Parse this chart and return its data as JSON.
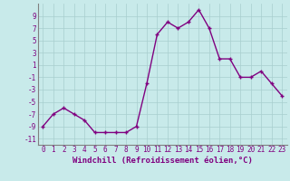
{
  "x": [
    0,
    1,
    2,
    3,
    4,
    5,
    6,
    7,
    8,
    9,
    10,
    11,
    12,
    13,
    14,
    15,
    16,
    17,
    18,
    19,
    20,
    21,
    22,
    23
  ],
  "y": [
    -9,
    -7,
    -6,
    -7,
    -8,
    -10,
    -10,
    -10,
    -10,
    -9,
    -2,
    6,
    8,
    7,
    8,
    10,
    7,
    2,
    2,
    -1,
    -1,
    0,
    -2,
    -4
  ],
  "line_color": "#800080",
  "marker": "+",
  "marker_size": 3,
  "marker_linewidth": 1.0,
  "background_color": "#c8eaea",
  "grid_color": "#a8cece",
  "xlabel": "Windchill (Refroidissement éolien,°C)",
  "ylim": [
    -12,
    11
  ],
  "xlim": [
    -0.5,
    23.5
  ],
  "yticks": [
    -11,
    -9,
    -7,
    -5,
    -3,
    -1,
    1,
    3,
    5,
    7,
    9
  ],
  "xticks": [
    0,
    1,
    2,
    3,
    4,
    5,
    6,
    7,
    8,
    9,
    10,
    11,
    12,
    13,
    14,
    15,
    16,
    17,
    18,
    19,
    20,
    21,
    22,
    23
  ],
  "tick_color": "#800080",
  "label_color": "#800080",
  "xlabel_fontsize": 6.5,
  "tick_fontsize": 5.5,
  "line_width": 1.0,
  "spine_color": "#808080"
}
